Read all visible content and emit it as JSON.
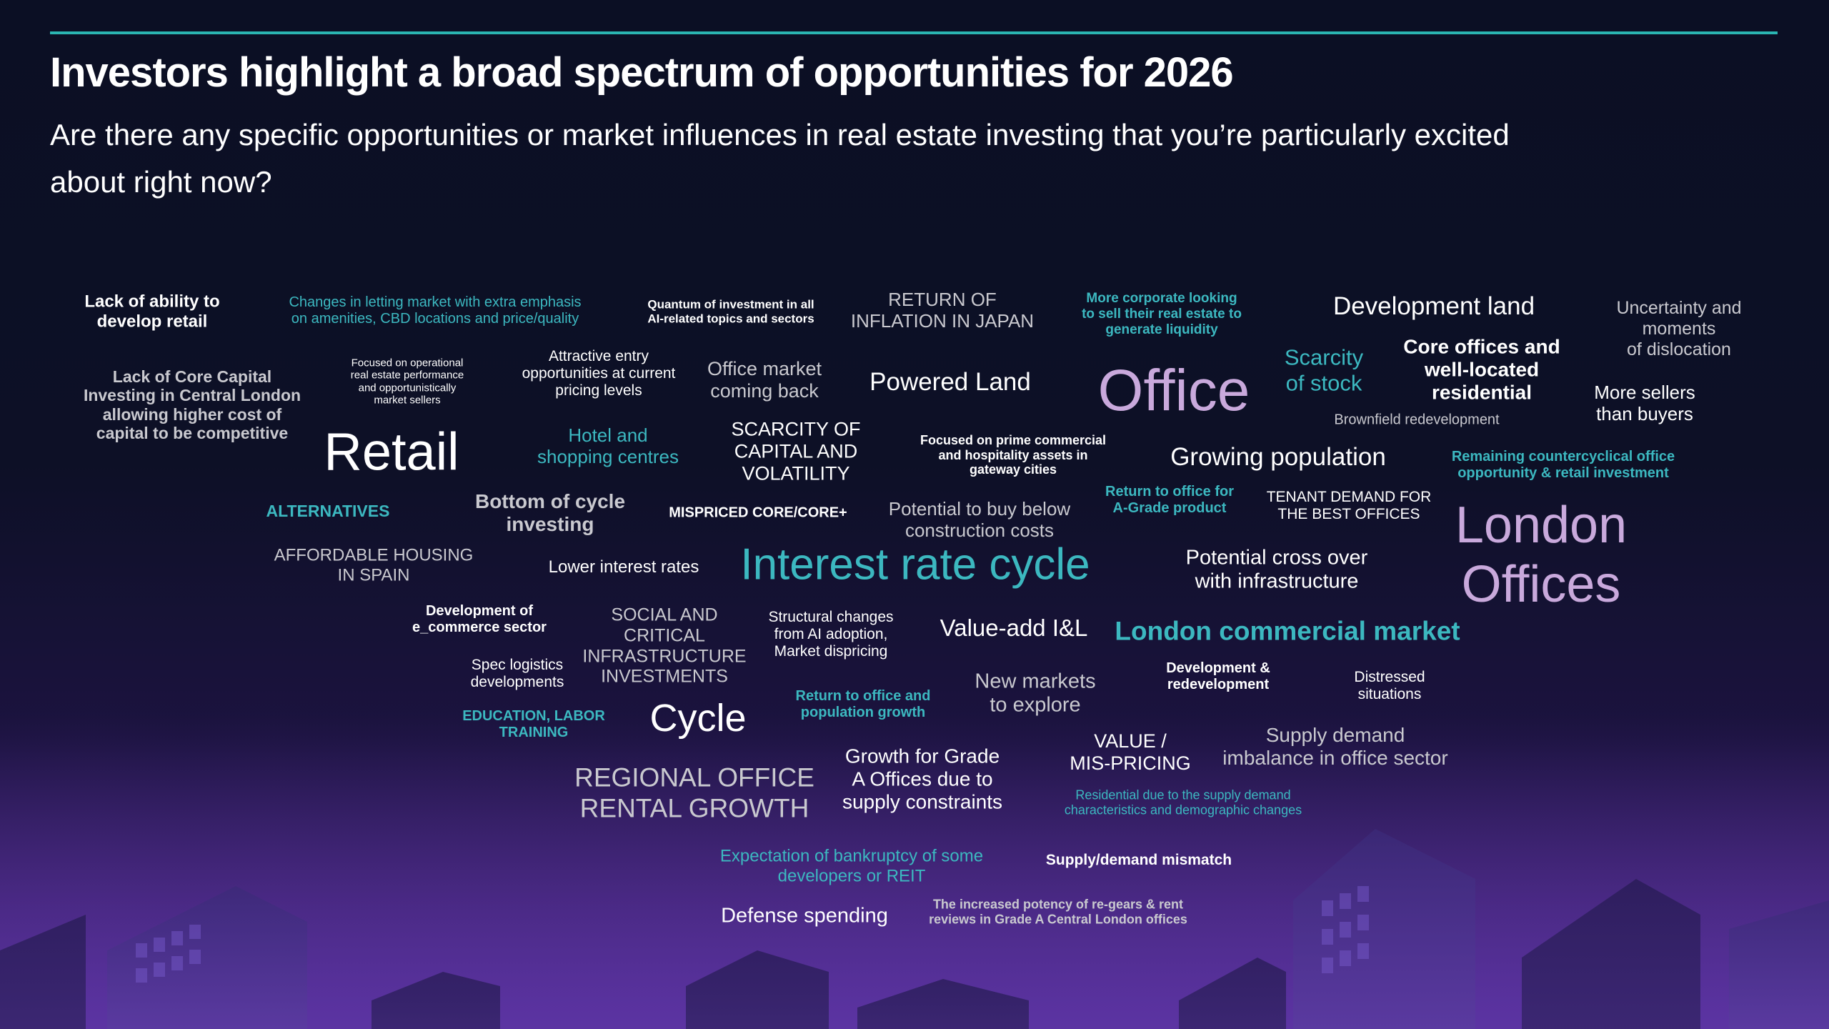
{
  "colors": {
    "accent": "#2bb5b2",
    "white": "#ffffff",
    "teal": "#3cb8c0",
    "lavender": "#c9a9dc",
    "grey": "#c9c9cf",
    "background": "#0b0f24"
  },
  "header": {
    "title": "Investors highlight a broad spectrum of opportunities for 2026",
    "subtitle": "Are there any specific opportunities or market influences in real estate investing that you’re particularly excited about right now?"
  },
  "word_cloud": [
    {
      "text": "Lack of ability to\ndevelop retail",
      "color": "white"
    },
    {
      "text": "Changes in letting market with extra emphasis\non amenities, CBD locations and price/quality",
      "color": "teal"
    },
    {
      "text": "Quantum of investment in all\nAI-related topics and sectors",
      "color": "white"
    },
    {
      "text": "RETURN OF\nINFLATION IN JAPAN",
      "color": "grey"
    },
    {
      "text": "More corporate looking\nto sell their real estate to\ngenerate liquidity",
      "color": "teal"
    },
    {
      "text": "Development land",
      "color": "white"
    },
    {
      "text": "Uncertainty and\nmoments\nof dislocation",
      "color": "grey"
    },
    {
      "text": "Lack of Core Capital\nInvesting in Central London\nallowing higher cost of\ncapital to be competitive",
      "color": "grey"
    },
    {
      "text": "Focused on operational\nreal estate performance\nand opportunistically\nmarket sellers",
      "color": "white"
    },
    {
      "text": "Attractive entry\nopportunities at current\npricing levels",
      "color": "white"
    },
    {
      "text": "Office market\ncoming back",
      "color": "grey"
    },
    {
      "text": "Powered Land",
      "color": "white"
    },
    {
      "text": "Office",
      "color": "lavender"
    },
    {
      "text": "Scarcity\nof stock",
      "color": "teal"
    },
    {
      "text": "Core offices and\nwell-located\nresidential",
      "color": "white"
    },
    {
      "text": "More sellers\nthan buyers",
      "color": "white"
    },
    {
      "text": "Brownfield redevelopment",
      "color": "grey"
    },
    {
      "text": "Retail",
      "color": "white"
    },
    {
      "text": "Hotel and\nshopping centres",
      "color": "teal"
    },
    {
      "text": "SCARCITY OF\nCAPITAL AND\nVOLATILITY",
      "color": "white"
    },
    {
      "text": "Focused on prime commercial\nand hospitality assets in\ngateway cities",
      "color": "white"
    },
    {
      "text": "Growing population",
      "color": "white"
    },
    {
      "text": "Remaining countercyclical office\nopportunity & retail investment",
      "color": "teal"
    },
    {
      "text": "ALTERNATIVES",
      "color": "teal"
    },
    {
      "text": "Bottom of cycle\ninvesting",
      "color": "grey"
    },
    {
      "text": "MISPRICED CORE/CORE+",
      "color": "white"
    },
    {
      "text": "Potential to buy below\nconstruction costs",
      "color": "grey"
    },
    {
      "text": "Return to office for\nA-Grade product",
      "color": "teal"
    },
    {
      "text": "TENANT DEMAND FOR\nTHE BEST OFFICES",
      "color": "white"
    },
    {
      "text": "London\nOffices",
      "color": "lavender"
    },
    {
      "text": "AFFORDABLE HOUSING\nIN SPAIN",
      "color": "grey"
    },
    {
      "text": "Lower interest rates",
      "color": "white"
    },
    {
      "text": "Interest rate cycle",
      "color": "teal"
    },
    {
      "text": "Potential cross over\nwith infrastructure",
      "color": "white"
    },
    {
      "text": "Development of\ne_commerce sector",
      "color": "white"
    },
    {
      "text": "SOCIAL AND\nCRITICAL\nINFRASTRUCTURE\nINVESTMENTS",
      "color": "grey"
    },
    {
      "text": "Structural changes\nfrom AI adoption,\nMarket dispricing",
      "color": "white"
    },
    {
      "text": "Value-add I&L",
      "color": "white"
    },
    {
      "text": "London commercial market",
      "color": "teal"
    },
    {
      "text": "Spec logistics\ndevelopments",
      "color": "white"
    },
    {
      "text": "Development &\nredevelopment",
      "color": "white"
    },
    {
      "text": "Distressed\nsituations",
      "color": "white"
    },
    {
      "text": "EDUCATION, LABOR\nTRAINING",
      "color": "teal"
    },
    {
      "text": "Cycle",
      "color": "white"
    },
    {
      "text": "Return to office and\npopulation growth",
      "color": "teal"
    },
    {
      "text": "New markets\nto explore",
      "color": "grey"
    },
    {
      "text": "VALUE /\nMIS-PRICING",
      "color": "white"
    },
    {
      "text": "Supply demand\nimbalance in office sector",
      "color": "grey"
    },
    {
      "text": "REGIONAL OFFICE\nRENTAL GROWTH",
      "color": "grey"
    },
    {
      "text": "Growth for Grade\nA Offices due to\nsupply constraints",
      "color": "white"
    },
    {
      "text": "Residential due to the supply demand\ncharacteristics and demographic changes",
      "color": "teal"
    },
    {
      "text": "Expectation of bankruptcy of some\ndevelopers or REIT",
      "color": "teal"
    },
    {
      "text": "Supply/demand mismatch",
      "color": "white"
    },
    {
      "text": "Defense spending",
      "color": "white"
    },
    {
      "text": "The increased potency of re-gears & rent\nreviews in Grade A Central London offices",
      "color": "grey"
    }
  ]
}
